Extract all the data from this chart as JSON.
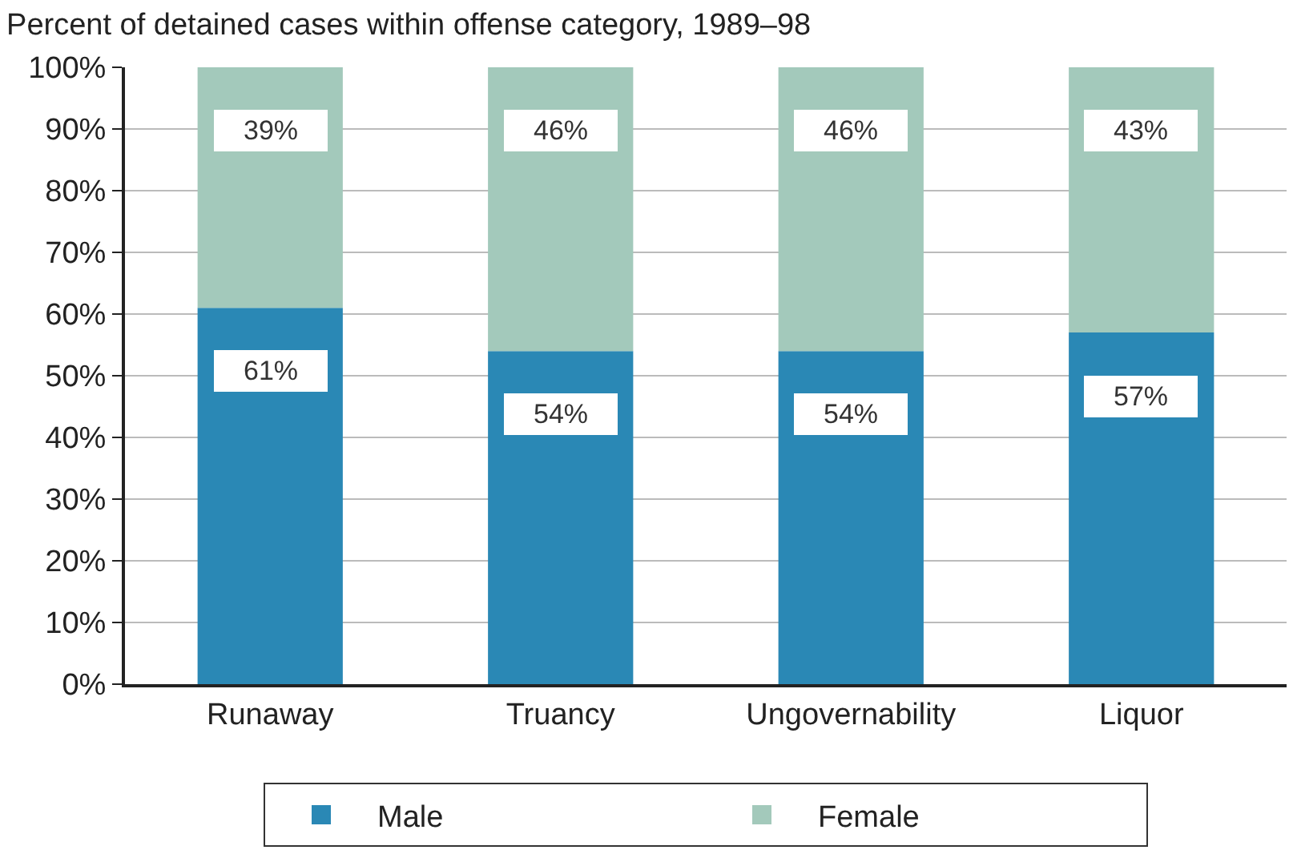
{
  "chart_data": {
    "type": "bar",
    "title": "Percent of detained cases within offense category, 1989–98",
    "categories": [
      "Runaway",
      "Truancy",
      "Ungovernability",
      "Liquor"
    ],
    "stacked": true,
    "series": [
      {
        "name": "Male",
        "color": "#2a88b5",
        "values": [
          61,
          54,
          54,
          57
        ],
        "value_labels": [
          "61%",
          "54%",
          "54%",
          "57%"
        ]
      },
      {
        "name": "Female",
        "color": "#a3c9bb",
        "values": [
          39,
          46,
          46,
          43
        ],
        "value_labels": [
          "39%",
          "46%",
          "46%",
          "43%"
        ]
      }
    ],
    "ylim": [
      0,
      100
    ],
    "yticks": [
      {
        "value": 0,
        "label": "0%"
      },
      {
        "value": 10,
        "label": "10%"
      },
      {
        "value": 20,
        "label": "20%"
      },
      {
        "value": 30,
        "label": "30%"
      },
      {
        "value": 40,
        "label": "40%"
      },
      {
        "value": 50,
        "label": "50%"
      },
      {
        "value": 60,
        "label": "60%"
      },
      {
        "value": 70,
        "label": "70%"
      },
      {
        "value": 80,
        "label": "80%"
      },
      {
        "value": 90,
        "label": "90%"
      },
      {
        "value": 100,
        "label": "100%"
      }
    ],
    "grid": "y",
    "legend": "bottom"
  }
}
